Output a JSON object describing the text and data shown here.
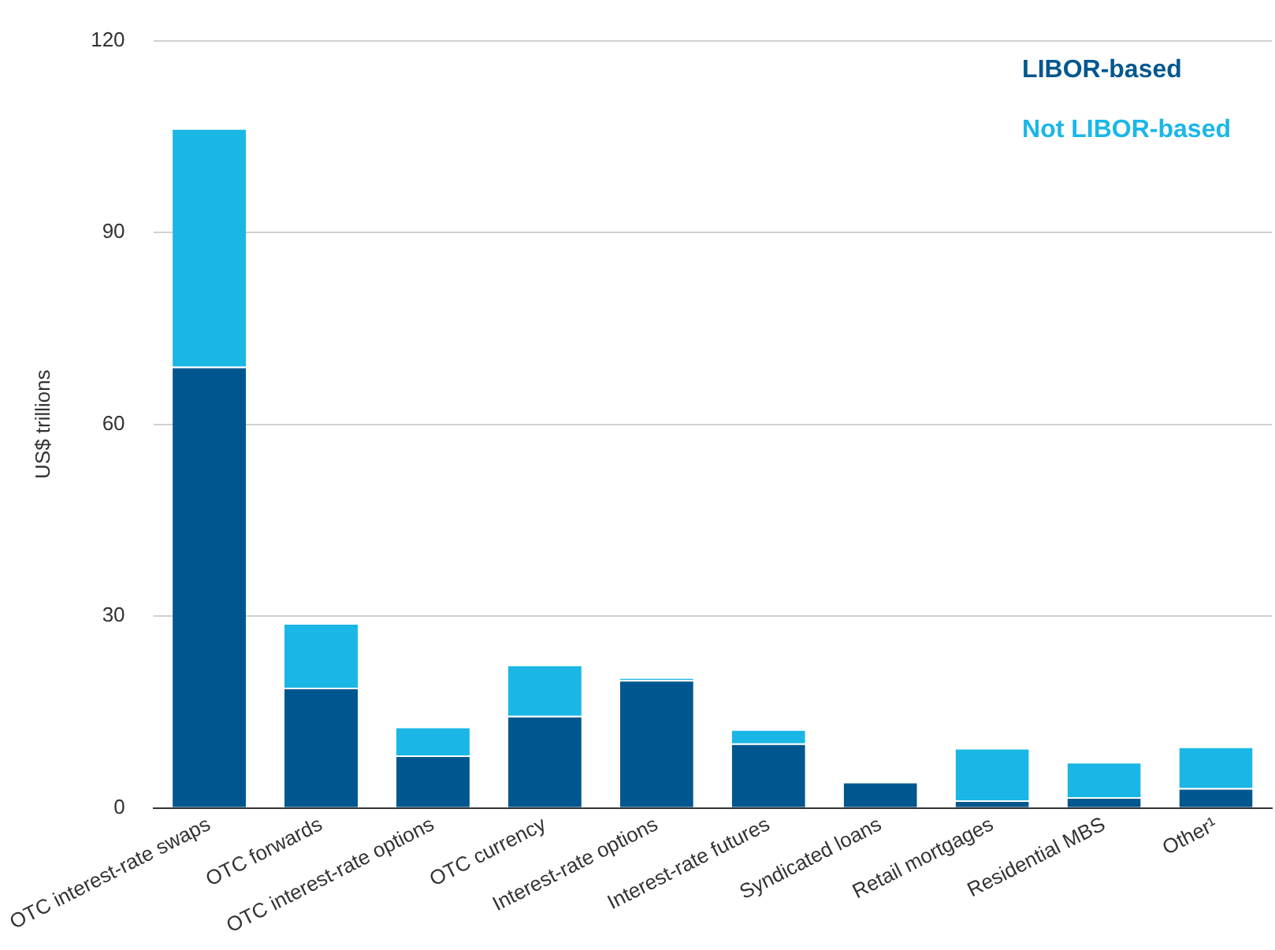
{
  "chart_data": {
    "type": "bar",
    "stacked": true,
    "ylabel": "US$ trillions",
    "categories": [
      "OTC interest-rate swaps",
      "OTC forwards",
      "OTC interest-rate options",
      "OTC currency",
      "Interest-rate options",
      "Interest-rate futures",
      "Syndicated loans",
      "Retail mortgages",
      "Residential MBS",
      "Other¹"
    ],
    "series": [
      {
        "name": "LIBOR-based",
        "color": "#00578f",
        "values": [
          69.0,
          18.8,
          8.2,
          14.4,
          20.0,
          10.1,
          4.1,
          1.2,
          1.7,
          3.1
        ]
      },
      {
        "name": "Not LIBOR-based",
        "color": "#1ab7e6",
        "values": [
          37.3,
          10.1,
          4.5,
          8.0,
          0.4,
          2.2,
          0,
          8.2,
          5.5,
          6.5
        ]
      }
    ],
    "ylim": [
      0,
      120
    ],
    "yticks": [
      0,
      30,
      60,
      90,
      120
    ],
    "grid": "y",
    "legend": "top right"
  }
}
